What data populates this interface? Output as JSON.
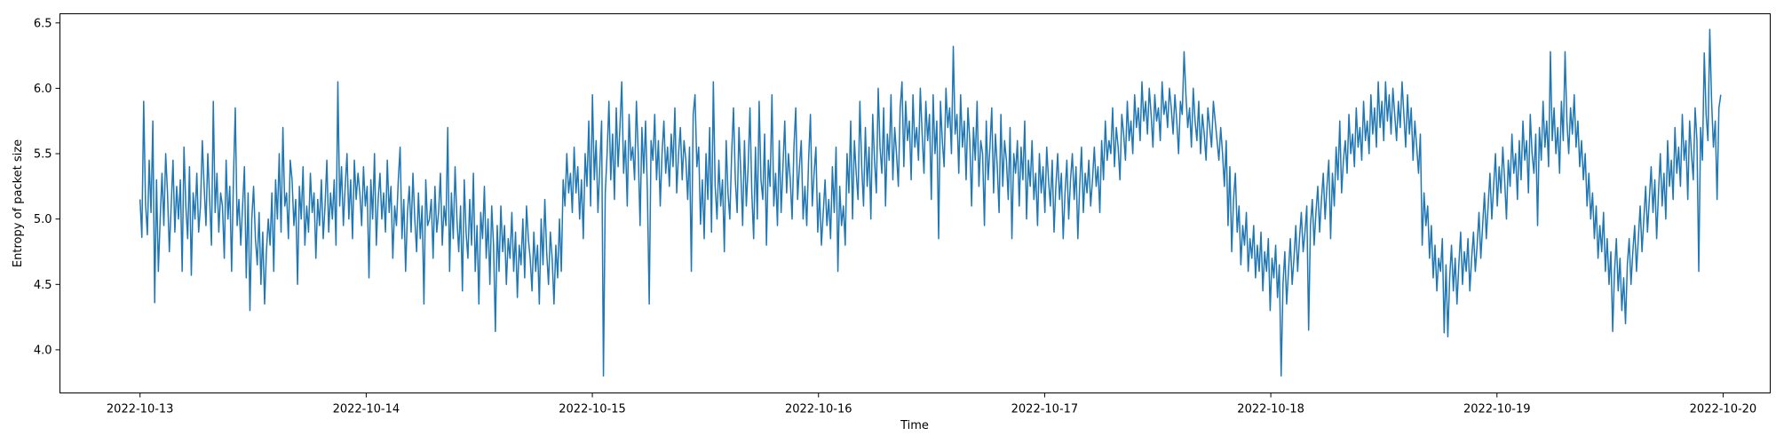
{
  "chart_data": {
    "type": "line",
    "title": "",
    "xlabel": "Time",
    "ylabel": "Entropy of packet size",
    "x_range": [
      "2022-10-13",
      "2022-10-20"
    ],
    "xlim": [
      "2022-10-12 15:30",
      "2022-10-20 05:00"
    ],
    "ylim": [
      3.67,
      6.57
    ],
    "grid": false,
    "line_color": "#1f77b4",
    "x_ticks": [
      "2022-10-13",
      "2022-10-14",
      "2022-10-15",
      "2022-10-16",
      "2022-10-17",
      "2022-10-18",
      "2022-10-19",
      "2022-10-20"
    ],
    "y_ticks": [
      "4.0",
      "4.5",
      "5.0",
      "5.5",
      "6.0",
      "6.5"
    ],
    "series": [
      {
        "x_start": "2022-10-13 00:00",
        "x_end": "2022-10-19 23:45",
        "sampling": "15min",
        "values": [
          5.15,
          4.86,
          5.9,
          5.12,
          4.88,
          5.45,
          5.05,
          5.75,
          4.36,
          5.3,
          4.6,
          5.0,
          5.35,
          4.95,
          5.5,
          5.2,
          4.75,
          5.1,
          5.45,
          4.9,
          5.25,
          5.0,
          5.3,
          4.6,
          5.55,
          5.1,
          4.85,
          5.4,
          4.57,
          5.2,
          5.0,
          5.35,
          4.9,
          5.1,
          5.6,
          5.25,
          4.95,
          5.5,
          5.15,
          4.8,
          5.9,
          5.05,
          5.35,
          4.9,
          5.2,
          5.1,
          4.7,
          5.45,
          5.0,
          5.25,
          4.6,
          5.3,
          5.85,
          4.95,
          5.15,
          4.8,
          5.1,
          5.4,
          4.55,
          5.2,
          4.3,
          5.0,
          5.25,
          4.85,
          4.65,
          5.05,
          4.5,
          4.9,
          4.35,
          4.75,
          5.0,
          4.8,
          5.2,
          4.6,
          5.3,
          5.0,
          5.5,
          4.9,
          5.7,
          5.1,
          5.2,
          4.85,
          5.45,
          5.3,
          4.95,
          5.15,
          4.5,
          5.25,
          5.0,
          5.4,
          4.8,
          5.1,
          4.9,
          5.35,
          5.05,
          5.2,
          4.7,
          5.15,
          4.95,
          5.3,
          4.85,
          5.1,
          5.45,
          4.9,
          5.2,
          5.0,
          5.3,
          4.8,
          6.05,
          5.1,
          5.4,
          4.95,
          5.25,
          5.5,
          5.0,
          5.3,
          4.85,
          5.45,
          5.15,
          5.35,
          5.2,
          4.95,
          5.4,
          5.1,
          5.25,
          4.55,
          5.3,
          5.0,
          5.5,
          4.8,
          5.15,
          5.35,
          5.0,
          5.2,
          4.9,
          5.45,
          5.05,
          5.25,
          4.7,
          5.1,
          4.95,
          5.3,
          5.55,
          4.85,
          5.15,
          4.6,
          5.05,
          5.25,
          4.9,
          5.35,
          5.0,
          4.75,
          5.2,
          4.85,
          5.1,
          4.35,
          5.3,
          4.95,
          5.0,
          5.15,
          4.7,
          5.25,
          4.9,
          5.05,
          5.35,
          4.8,
          5.1,
          4.95,
          5.7,
          4.6,
          5.2,
          4.85,
          5.4,
          5.0,
          4.75,
          5.1,
          4.45,
          5.3,
          4.9,
          4.7,
          5.15,
          4.8,
          5.35,
          4.6,
          4.95,
          4.35,
          5.05,
          4.85,
          5.25,
          4.7,
          5.0,
          4.5,
          5.1,
          4.8,
          4.14,
          4.95,
          4.6,
          5.1,
          4.75,
          4.95,
          4.5,
          4.85,
          4.7,
          5.05,
          4.6,
          4.9,
          4.4,
          4.8,
          4.65,
          5.0,
          4.55,
          5.1,
          4.85,
          4.7,
          4.45,
          4.9,
          4.6,
          4.8,
          4.35,
          5.0,
          4.65,
          5.15,
          4.75,
          4.5,
          4.9,
          4.7,
          4.35,
          4.8,
          4.55,
          5.0,
          4.6,
          5.3,
          5.1,
          5.5,
          5.2,
          5.35,
          5.05,
          5.55,
          5.2,
          5.4,
          5.0,
          5.3,
          4.85,
          5.5,
          5.25,
          5.75,
          5.1,
          5.95,
          5.3,
          5.6,
          5.05,
          5.4,
          5.75,
          3.8,
          5.2,
          5.5,
          5.9,
          5.3,
          5.65,
          5.15,
          5.85,
          5.4,
          5.7,
          6.05,
          5.35,
          5.6,
          5.1,
          5.8,
          5.45,
          5.55,
          5.3,
          5.9,
          5.5,
          4.95,
          5.7,
          5.35,
          5.75,
          5.2,
          4.35,
          5.6,
          5.45,
          5.8,
          5.3,
          5.6,
          5.1,
          5.5,
          5.75,
          5.35,
          5.55,
          5.25,
          5.65,
          5.4,
          5.85,
          5.2,
          5.5,
          5.7,
          5.3,
          5.6,
          5.45,
          5.15,
          5.55,
          4.6,
          5.8,
          5.95,
          5.4,
          5.55,
          4.96,
          5.3,
          4.85,
          5.5,
          5.15,
          5.7,
          4.9,
          6.05,
          5.25,
          5.0,
          5.45,
          5.1,
          5.3,
          4.75,
          5.6,
          5.2,
          5.0,
          5.5,
          5.85,
          5.3,
          5.05,
          5.7,
          5.35,
          4.95,
          5.6,
          5.1,
          5.4,
          5.85,
          5.2,
          4.85,
          5.55,
          5.0,
          5.9,
          5.3,
          5.15,
          5.65,
          4.8,
          5.45,
          5.25,
          5.95,
          5.1,
          5.35,
          4.95,
          5.6,
          5.05,
          5.4,
          5.75,
          5.2,
          5.5,
          5.3,
          5.0,
          5.55,
          5.85,
          5.15,
          5.4,
          5.6,
          5.0,
          5.25,
          4.95,
          5.45,
          5.8,
          5.1,
          5.35,
          5.55,
          4.9,
          5.2,
          4.8,
          5.05,
          5.3,
          4.95,
          5.15,
          4.85,
          5.4,
          5.05,
          5.55,
          4.6,
          5.25,
          4.95,
          5.1,
          4.8,
          5.5,
          5.2,
          5.75,
          5.0,
          5.6,
          5.35,
          5.15,
          5.9,
          5.4,
          5.1,
          5.7,
          5.25,
          5.55,
          5.0,
          5.8,
          5.45,
          5.2,
          6.0,
          5.55,
          5.35,
          5.85,
          5.1,
          5.65,
          5.45,
          5.95,
          5.3,
          5.7,
          5.5,
          5.25,
          5.85,
          6.05,
          5.4,
          5.9,
          5.6,
          5.75,
          5.3,
          5.95,
          5.55,
          5.7,
          5.45,
          6.0,
          5.65,
          5.35,
          5.9,
          5.6,
          5.8,
          5.15,
          5.95,
          5.5,
          5.75,
          4.85,
          5.9,
          5.6,
          5.4,
          6.0,
          5.7,
          5.85,
          5.5,
          6.32,
          5.65,
          5.8,
          5.35,
          5.95,
          5.55,
          5.75,
          5.3,
          5.85,
          5.6,
          5.1,
          5.7,
          5.45,
          5.9,
          5.25,
          5.6,
          5.5,
          4.95,
          5.75,
          5.3,
          5.55,
          5.85,
          5.2,
          5.65,
          5.4,
          5.05,
          5.8,
          5.25,
          5.6,
          5.45,
          5.15,
          5.7,
          4.85,
          5.5,
          5.35,
          5.6,
          5.1,
          5.55,
          5.3,
          5.75,
          5.0,
          5.45,
          5.25,
          5.6,
          5.15,
          5.35,
          4.95,
          5.5,
          5.2,
          5.4,
          5.05,
          5.55,
          5.3,
          5.1,
          5.45,
          4.9,
          5.25,
          5.5,
          5.15,
          5.35,
          4.85,
          5.2,
          5.45,
          5.0,
          5.3,
          5.5,
          5.15,
          5.4,
          4.85,
          5.25,
          5.55,
          5.05,
          5.35,
          5.2,
          5.45,
          5.1,
          5.3,
          5.55,
          5.25,
          5.4,
          5.05,
          5.6,
          5.3,
          5.75,
          5.45,
          5.6,
          5.5,
          5.85,
          5.4,
          5.7,
          5.55,
          5.3,
          5.8,
          5.65,
          5.45,
          5.9,
          5.6,
          5.75,
          5.5,
          5.95,
          5.7,
          5.85,
          5.6,
          6.05,
          5.75,
          5.9,
          5.65,
          6.0,
          5.8,
          5.55,
          5.95,
          5.75,
          5.85,
          5.6,
          6.05,
          5.8,
          5.9,
          5.7,
          6.0,
          5.85,
          5.65,
          5.95,
          5.75,
          5.5,
          5.9,
          5.8,
          6.28,
          5.95,
          5.7,
          5.85,
          5.55,
          6.0,
          5.75,
          5.6,
          5.9,
          5.5,
          5.8,
          5.65,
          5.45,
          5.85,
          5.7,
          5.55,
          5.9,
          5.75,
          5.6,
          5.45,
          5.7,
          5.5,
          5.25,
          5.6,
          4.95,
          5.4,
          4.75,
          5.15,
          5.35,
          4.9,
          5.1,
          4.65,
          4.95,
          4.8,
          5.05,
          4.6,
          4.85,
          4.7,
          4.95,
          4.55,
          4.8,
          4.6,
          4.9,
          4.45,
          4.75,
          4.6,
          4.85,
          4.3,
          4.7,
          4.55,
          4.8,
          4.4,
          4.65,
          3.8,
          4.5,
          4.75,
          4.35,
          4.6,
          4.85,
          4.5,
          4.7,
          4.95,
          4.6,
          4.85,
          5.05,
          4.75,
          4.9,
          5.1,
          4.15,
          4.95,
          5.15,
          4.8,
          5.05,
          5.25,
          4.9,
          5.15,
          5.35,
          5.0,
          5.25,
          5.45,
          4.85,
          5.35,
          5.1,
          5.55,
          5.3,
          5.75,
          5.2,
          5.45,
          5.6,
          5.35,
          5.8,
          5.5,
          5.65,
          5.4,
          5.85,
          5.55,
          5.7,
          5.45,
          5.9,
          5.6,
          5.75,
          5.5,
          5.95,
          5.65,
          5.85,
          5.55,
          6.05,
          5.7,
          5.9,
          5.6,
          6.05,
          5.75,
          5.95,
          5.65,
          6.0,
          5.8,
          5.6,
          5.9,
          5.7,
          6.05,
          5.8,
          5.55,
          5.95,
          5.65,
          5.85,
          5.45,
          5.75,
          5.55,
          5.35,
          5.65,
          4.8,
          5.2,
          4.95,
          5.1,
          4.7,
          4.95,
          4.55,
          4.8,
          4.45,
          4.7,
          4.6,
          4.85,
          4.13,
          4.65,
          4.1,
          4.55,
          4.8,
          4.45,
          4.7,
          4.35,
          4.65,
          4.9,
          4.5,
          4.75,
          4.6,
          4.85,
          4.45,
          4.7,
          4.9,
          4.6,
          4.8,
          5.05,
          4.7,
          4.95,
          5.2,
          4.85,
          5.1,
          5.35,
          5.0,
          5.25,
          5.5,
          5.1,
          5.4,
          5.2,
          5.55,
          5.3,
          5.0,
          5.45,
          5.25,
          5.65,
          5.35,
          5.5,
          5.15,
          5.6,
          5.3,
          5.75,
          5.45,
          5.6,
          5.2,
          5.8,
          5.5,
          5.35,
          5.65,
          4.95,
          5.7,
          5.45,
          5.9,
          5.55,
          5.75,
          5.4,
          6.28,
          5.6,
          5.85,
          5.5,
          5.7,
          5.35,
          5.9,
          5.6,
          6.28,
          5.75,
          5.5,
          5.85,
          5.65,
          5.95,
          5.55,
          5.75,
          5.4,
          5.6,
          5.3,
          5.5,
          5.1,
          5.35,
          5.0,
          5.2,
          4.85,
          5.1,
          4.7,
          4.95,
          4.75,
          5.05,
          4.6,
          4.85,
          4.5,
          4.75,
          4.14,
          4.6,
          4.85,
          4.45,
          4.7,
          4.3,
          4.55,
          4.2,
          4.65,
          4.85,
          4.5,
          4.75,
          4.95,
          4.6,
          4.85,
          5.1,
          4.75,
          5.0,
          5.25,
          4.9,
          5.15,
          5.4,
          5.05,
          5.3,
          4.85,
          5.2,
          5.5,
          5.1,
          5.35,
          5.0,
          5.6,
          5.25,
          5.45,
          5.15,
          5.7,
          5.35,
          5.55,
          5.25,
          5.8,
          5.45,
          5.6,
          5.15,
          5.75,
          5.5,
          5.3,
          5.85,
          5.6,
          4.6,
          5.7,
          5.45,
          6.27,
          5.8,
          5.6,
          6.45,
          5.9,
          5.55,
          5.75,
          5.15,
          5.85,
          5.95
        ]
      }
    ]
  }
}
